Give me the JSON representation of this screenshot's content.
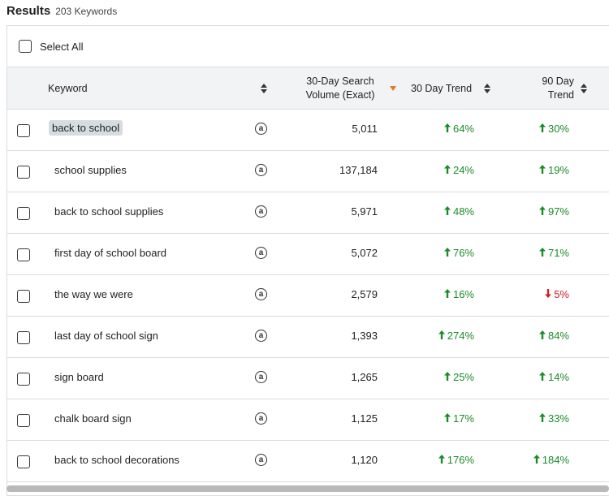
{
  "header": {
    "title": "Results",
    "count": "203 Keywords"
  },
  "select_all": {
    "label": "Select All"
  },
  "columns": {
    "keyword": "Keyword",
    "volume_line1": "30-Day Search",
    "volume_line2": "Volume (Exact)",
    "trend30": "30 Day Trend",
    "trend90_line1": "90 Day",
    "trend90_line2": "Trend"
  },
  "colors": {
    "up": "#1d8a2a",
    "down": "#c8232c",
    "sort_active": "#e07b22",
    "highlight": "#d6dde0"
  },
  "icons": {
    "amazon": "amazon-icon",
    "sort": "sort-icon"
  },
  "amazon_glyph": "a",
  "rows": [
    {
      "keyword": "back to school",
      "volume": "5,011",
      "trend30": "64%",
      "trend30_dir": "up",
      "trend90": "30%",
      "trend90_dir": "up",
      "highlighted": true
    },
    {
      "keyword": "school supplies",
      "volume": "137,184",
      "trend30": "24%",
      "trend30_dir": "up",
      "trend90": "19%",
      "trend90_dir": "up"
    },
    {
      "keyword": "back to school supplies",
      "volume": "5,971",
      "trend30": "48%",
      "trend30_dir": "up",
      "trend90": "97%",
      "trend90_dir": "up"
    },
    {
      "keyword": "first day of school board",
      "volume": "5,072",
      "trend30": "76%",
      "trend30_dir": "up",
      "trend90": "71%",
      "trend90_dir": "up"
    },
    {
      "keyword": "the way we were",
      "volume": "2,579",
      "trend30": "16%",
      "trend30_dir": "up",
      "trend90": "5%",
      "trend90_dir": "down"
    },
    {
      "keyword": "last day of school sign",
      "volume": "1,393",
      "trend30": "274%",
      "trend30_dir": "up",
      "trend90": "84%",
      "trend90_dir": "up"
    },
    {
      "keyword": "sign board",
      "volume": "1,265",
      "trend30": "25%",
      "trend30_dir": "up",
      "trend90": "14%",
      "trend90_dir": "up"
    },
    {
      "keyword": "chalk board sign",
      "volume": "1,125",
      "trend30": "17%",
      "trend30_dir": "up",
      "trend90": "33%",
      "trend90_dir": "up"
    },
    {
      "keyword": "back to school decorations",
      "volume": "1,120",
      "trend30": "176%",
      "trend30_dir": "up",
      "trend90": "184%",
      "trend90_dir": "up"
    }
  ]
}
